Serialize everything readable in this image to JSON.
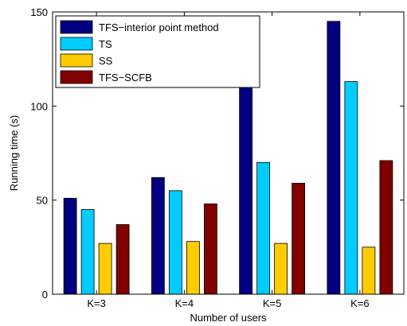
{
  "chart_data": {
    "type": "bar",
    "xlabel": "Number of users",
    "ylabel": "Running time (s)",
    "ylim": [
      0,
      150
    ],
    "yticks": [
      0,
      50,
      100,
      150
    ],
    "grid": false,
    "legend_position": "top-left",
    "categories": [
      "K=3",
      "K=4",
      "K=5",
      "K=6"
    ],
    "series": [
      {
        "name": "TFS−interior point method",
        "color": "#000080",
        "values": [
          51,
          62,
          114,
          145
        ]
      },
      {
        "name": "TS",
        "color": "#00ccff",
        "values": [
          45,
          55,
          70,
          113
        ]
      },
      {
        "name": "SS",
        "color": "#ffcc00",
        "values": [
          27,
          28,
          27,
          25
        ]
      },
      {
        "name": "TFS−SCFB",
        "color": "#800000",
        "values": [
          37,
          48,
          59,
          71
        ]
      }
    ]
  }
}
